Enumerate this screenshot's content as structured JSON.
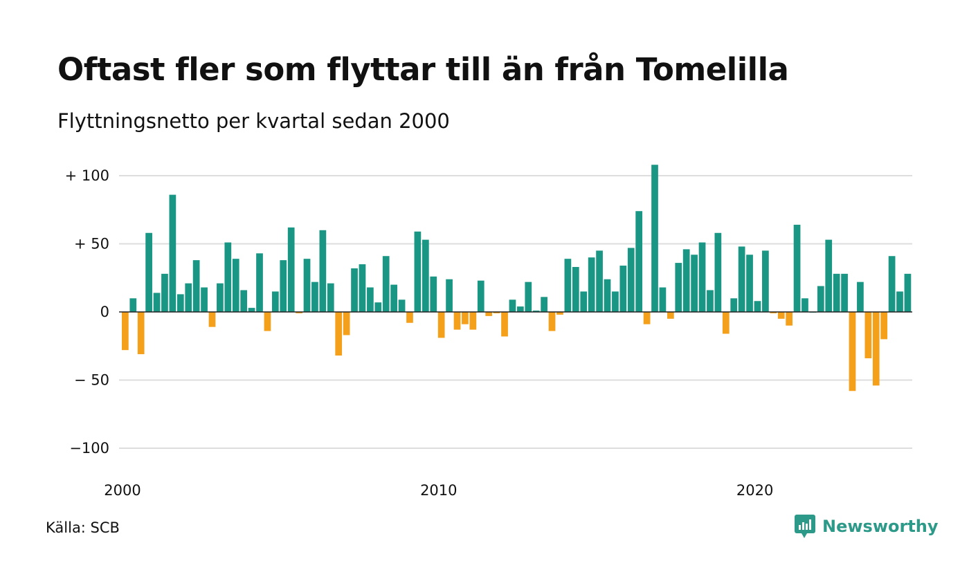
{
  "title": "Oftast fler som flyttar till än från Tomelilla",
  "subtitle": "Flyttningsnetto per kvartal sedan 2000",
  "source": "Källa: SCB",
  "brand": {
    "name": "Newsworthy",
    "icon": "newsworthy-logo-icon",
    "color": "#2d9a89"
  },
  "colors": {
    "positive": "#1a9685",
    "negative": "#f5a01a",
    "grid": "#dddddd",
    "zero": "#222222"
  },
  "chart_data": {
    "type": "bar",
    "ylim": [
      -100,
      108
    ],
    "yticks": [
      100,
      50,
      0,
      -50,
      -100
    ],
    "ytick_labels": [
      "+ 100",
      "+  50",
      "0",
      "− 50",
      "−100"
    ],
    "xticks": [
      {
        "index": 0,
        "label": "2000"
      },
      {
        "index": 40,
        "label": "2010"
      },
      {
        "index": 80,
        "label": "2020"
      }
    ],
    "grid": true,
    "legend": "none",
    "values": [
      -28,
      10,
      -31,
      58,
      14,
      28,
      86,
      13,
      21,
      38,
      18,
      -11,
      21,
      51,
      39,
      16,
      3,
      43,
      -14,
      15,
      38,
      62,
      -1,
      39,
      22,
      60,
      21,
      -32,
      -17,
      32,
      35,
      18,
      7,
      41,
      20,
      9,
      -8,
      59,
      53,
      26,
      -19,
      24,
      -13,
      -9,
      -13,
      23,
      -3,
      -1,
      -18,
      9,
      4,
      22,
      1,
      11,
      -14,
      -2,
      39,
      33,
      15,
      40,
      45,
      24,
      15,
      34,
      47,
      74,
      -9,
      108,
      18,
      -5,
      36,
      46,
      42,
      51,
      16,
      58,
      -16,
      10,
      48,
      42,
      8,
      45,
      -1,
      -5,
      -10,
      64,
      10,
      0,
      19,
      53,
      28,
      28,
      -58,
      22,
      -34,
      -54,
      -20,
      41,
      15,
      28
    ]
  }
}
